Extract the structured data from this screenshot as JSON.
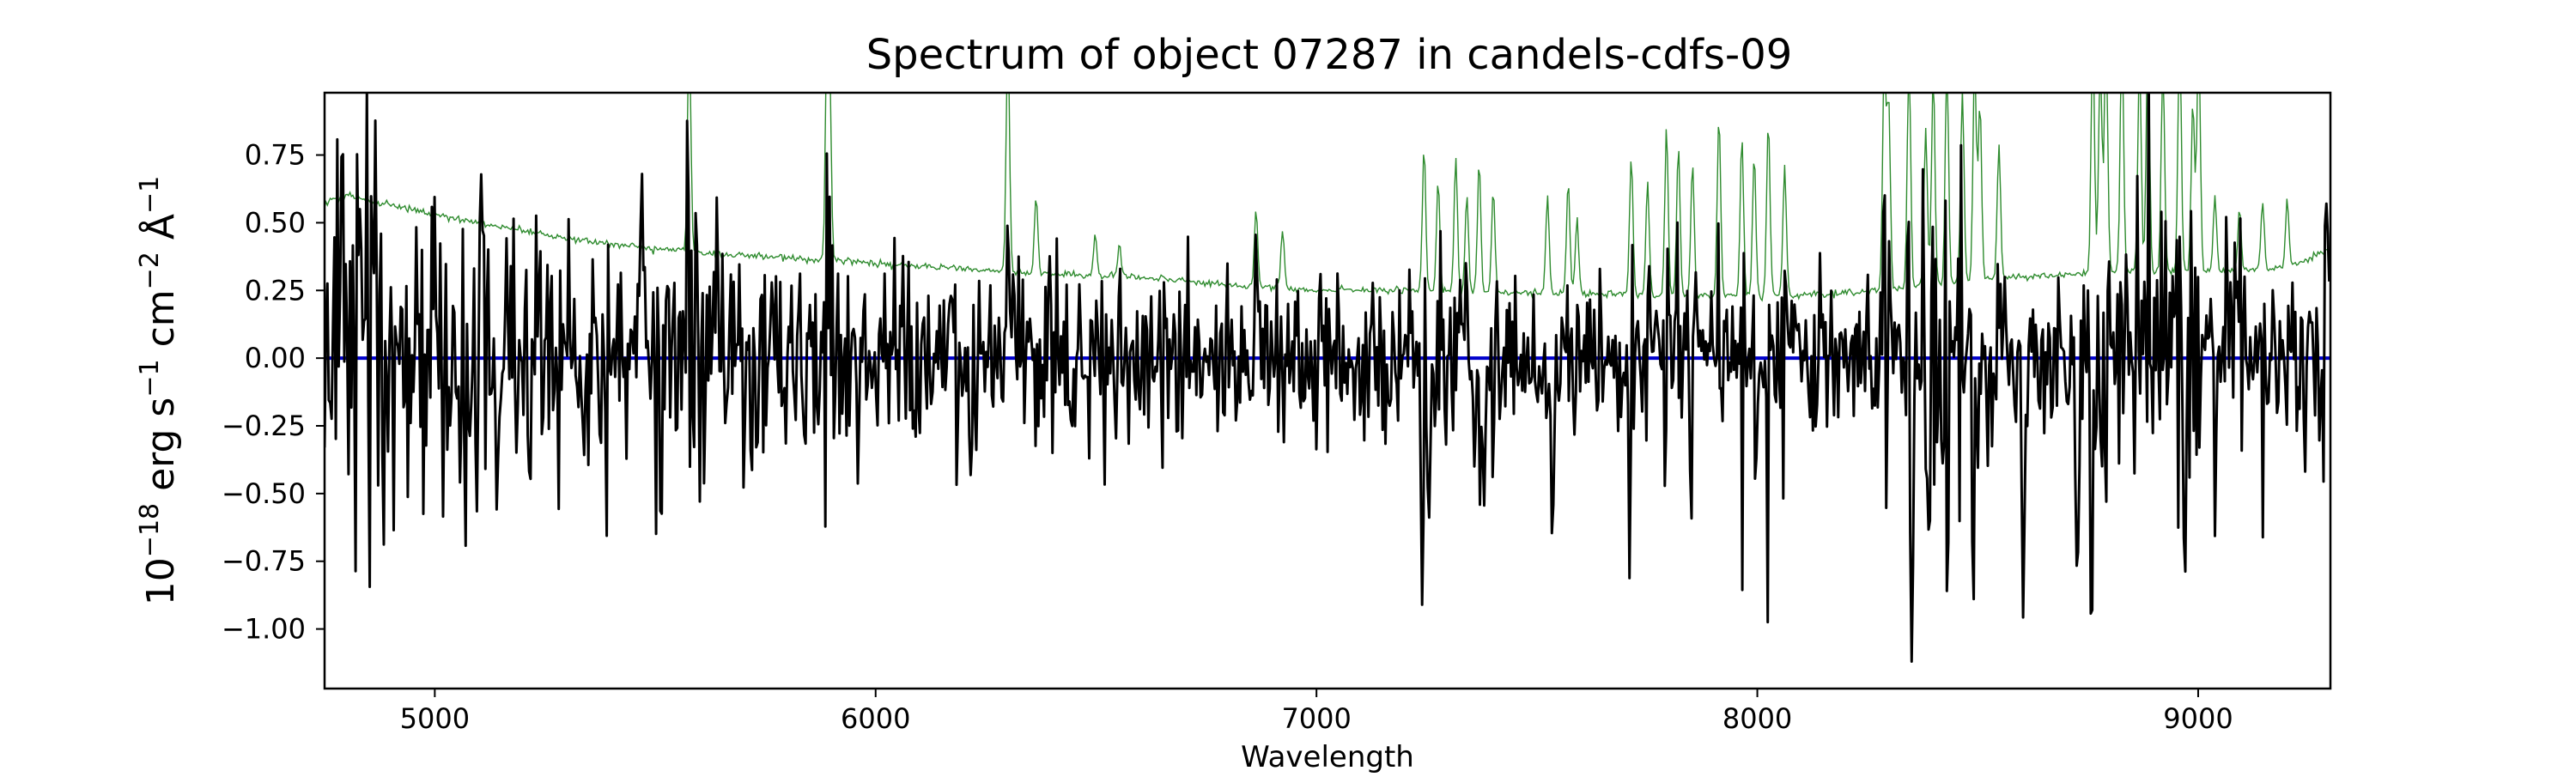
{
  "chart_data": {
    "type": "line",
    "title": "Spectrum of object 07287 in candels-cdfs-09",
    "xlabel": "Wavelength",
    "ylabel": {
      "prefix": "10",
      "prefix_exp": "−18",
      "erg": " erg s",
      "s_exp": "−1",
      "cm": " cm",
      "cm_exp": "−2",
      "ang": " Å",
      "ang_exp": "−1"
    },
    "xlim": [
      4750,
      9300
    ],
    "ylim": [
      -1.22,
      0.98
    ],
    "x_ticks": [
      5000,
      6000,
      7000,
      8000,
      9000
    ],
    "x_tick_labels": [
      "5000",
      "6000",
      "7000",
      "8000",
      "9000"
    ],
    "y_ticks": [
      0.75,
      0.5,
      0.25,
      0.0,
      -0.25,
      -0.5,
      -0.75,
      -1.0
    ],
    "y_tick_labels": [
      "0.75",
      "0.50",
      "0.25",
      "0.00",
      "−0.25",
      "−0.50",
      "−0.75",
      "−1.00"
    ],
    "grid": false,
    "series": [
      {
        "role": "error",
        "color": "#2e8b2e",
        "continuum": [
          [
            4750,
            0.57
          ],
          [
            4800,
            0.6
          ],
          [
            5000,
            0.53
          ],
          [
            5200,
            0.47
          ],
          [
            5400,
            0.42
          ],
          [
            5600,
            0.39
          ],
          [
            5800,
            0.37
          ],
          [
            6000,
            0.35
          ],
          [
            6200,
            0.33
          ],
          [
            6400,
            0.31
          ],
          [
            6600,
            0.3
          ],
          [
            6800,
            0.27
          ],
          [
            7000,
            0.25
          ],
          [
            7200,
            0.25
          ],
          [
            7400,
            0.24
          ],
          [
            7600,
            0.24
          ],
          [
            7800,
            0.23
          ],
          [
            8000,
            0.23
          ],
          [
            8200,
            0.24
          ],
          [
            8400,
            0.27
          ],
          [
            8600,
            0.3
          ],
          [
            8800,
            0.32
          ],
          [
            9000,
            0.32
          ],
          [
            9200,
            0.33
          ],
          [
            9300,
            0.4
          ]
        ],
        "peaks": [
          [
            5577,
            1.2
          ],
          [
            5890,
            1.2
          ],
          [
            5896,
            0.9
          ],
          [
            6300,
            1.2
          ],
          [
            6364,
            0.6
          ],
          [
            6498,
            0.45
          ],
          [
            6553,
            0.42
          ],
          [
            6863,
            0.55
          ],
          [
            6923,
            0.48
          ],
          [
            7244,
            0.78
          ],
          [
            7276,
            0.65
          ],
          [
            7316,
            0.75
          ],
          [
            7341,
            0.6
          ],
          [
            7369,
            0.72
          ],
          [
            7401,
            0.62
          ],
          [
            7524,
            0.6
          ],
          [
            7571,
            0.65
          ],
          [
            7591,
            0.52
          ],
          [
            7714,
            0.75
          ],
          [
            7751,
            0.65
          ],
          [
            7794,
            0.85
          ],
          [
            7821,
            0.78
          ],
          [
            7853,
            0.72
          ],
          [
            7913,
            0.9
          ],
          [
            7965,
            0.82
          ],
          [
            7993,
            0.75
          ],
          [
            8025,
            0.88
          ],
          [
            8062,
            0.72
          ],
          [
            8288,
            1.1
          ],
          [
            8298,
            0.95
          ],
          [
            8344,
            1.1
          ],
          [
            8382,
            0.85
          ],
          [
            8399,
            1.05
          ],
          [
            8430,
            1.1
          ],
          [
            8465,
            1.0
          ],
          [
            8493,
            1.1
          ],
          [
            8505,
            0.95
          ],
          [
            8548,
            0.8
          ],
          [
            8761,
            1.2
          ],
          [
            8778,
            1.1
          ],
          [
            8791,
            1.2
          ],
          [
            8827,
            1.2
          ],
          [
            8867,
            1.1
          ],
          [
            8886,
            1.2
          ],
          [
            8920,
            1.1
          ],
          [
            8958,
            1.2
          ],
          [
            8988,
            0.95
          ],
          [
            9001,
            1.2
          ],
          [
            9038,
            0.6
          ],
          [
            9094,
            0.55
          ],
          [
            9146,
            0.58
          ],
          [
            9202,
            0.58
          ]
        ]
      },
      {
        "role": "model",
        "color": "#0000cc",
        "x": [
          4750,
          9300
        ],
        "y": [
          0.0,
          0.0
        ]
      },
      {
        "role": "flux",
        "color": "#000000",
        "features": [
          [
            4790,
            0.8
          ],
          [
            4830,
            0.55
          ],
          [
            4865,
            0.88
          ],
          [
            5000,
            0.6
          ],
          [
            5105,
            0.68
          ],
          [
            5185,
            -0.35
          ],
          [
            5470,
            0.68
          ],
          [
            5640,
            0.6
          ],
          [
            5730,
            -0.35
          ],
          [
            5895,
            0.62
          ],
          [
            6215,
            -0.44
          ],
          [
            6300,
            0.5
          ],
          [
            7240,
            -0.92
          ],
          [
            7255,
            -0.6
          ],
          [
            7380,
            -0.55
          ],
          [
            7535,
            -0.68
          ],
          [
            7860,
            0.32
          ],
          [
            8350,
            -1.12
          ],
          [
            8390,
            -0.7
          ],
          [
            8490,
            -0.9
          ],
          [
            8603,
            -0.96
          ],
          [
            8726,
            -0.85
          ],
          [
            8970,
            -0.82
          ],
          [
            9290,
            0.6
          ]
        ]
      }
    ]
  }
}
